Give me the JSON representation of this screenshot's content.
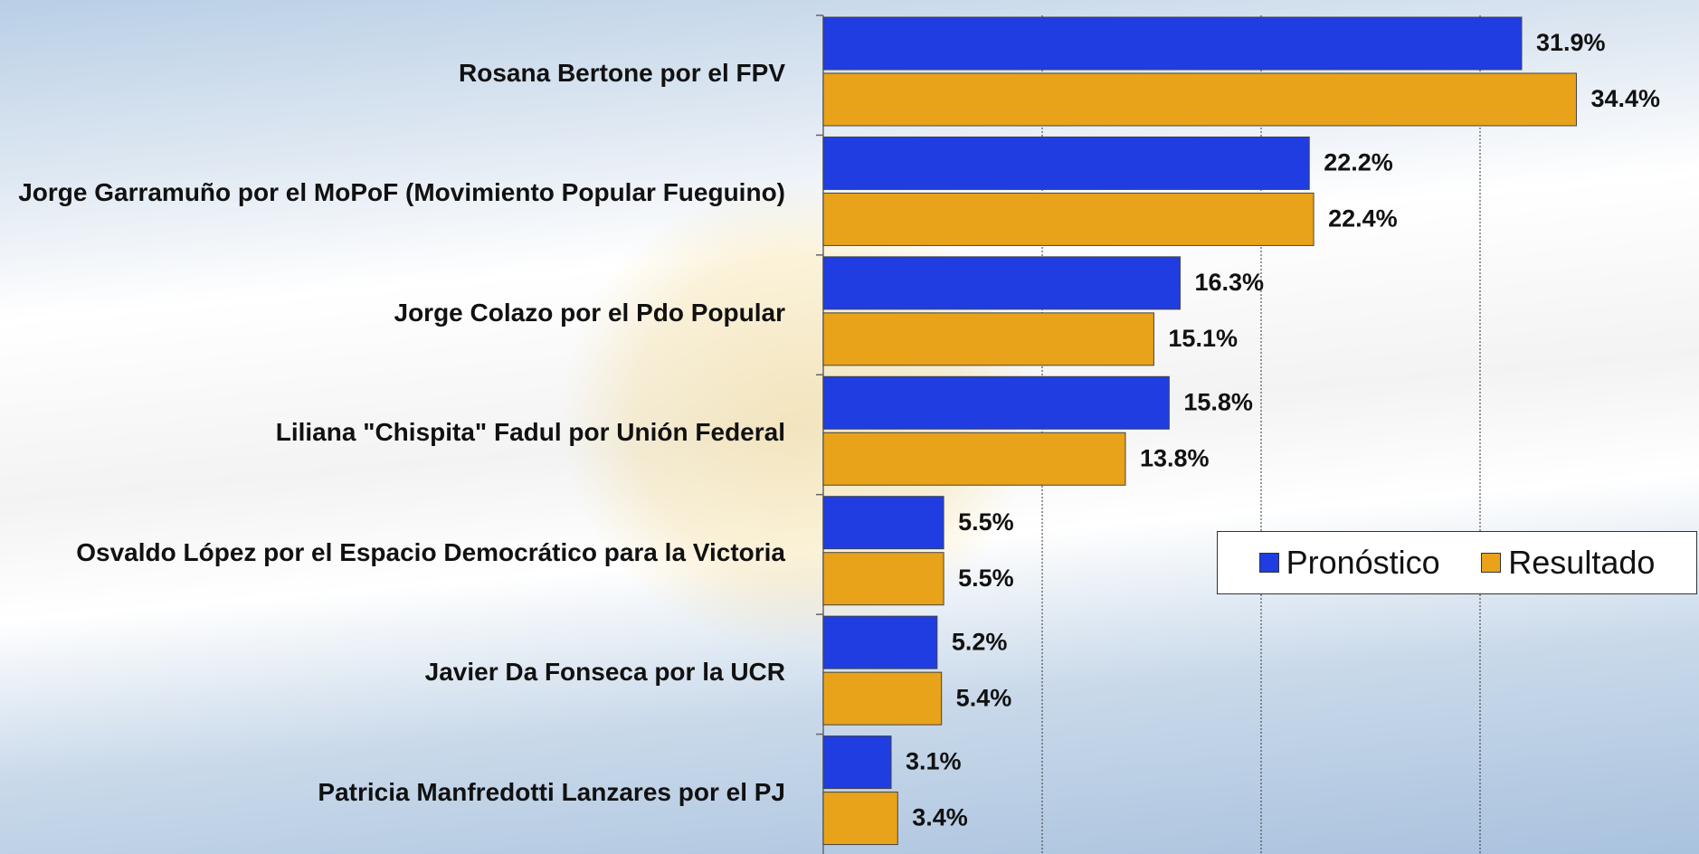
{
  "chart_data": {
    "type": "hbar",
    "categories": [
      "Rosana Bertone por el FPV",
      "Jorge Garramuño por el MoPoF (Movimiento Popular Fueguino)",
      "Jorge Colazo por el Pdo Popular",
      "Liliana \"Chispita\" Fadul por Unión Federal",
      "Osvaldo López por el Espacio Democrático para la Victoria",
      "Javier Da Fonseca por la UCR",
      "Patricia Manfredotti Lanzares por el PJ"
    ],
    "series": [
      {
        "name": "Pronóstico",
        "color": "#1f3de0",
        "values": [
          31.9,
          22.2,
          16.3,
          15.8,
          5.5,
          5.2,
          3.1
        ],
        "value_labels": [
          "31.9%",
          "22.2%",
          "16.3%",
          "15.8%",
          "5.5%",
          "5.2%",
          "3.1%"
        ]
      },
      {
        "name": "Resultado",
        "color": "#e8a31a",
        "values": [
          34.4,
          22.4,
          15.1,
          13.8,
          5.5,
          5.4,
          3.4
        ],
        "value_labels": [
          "34.4%",
          "22.4%",
          "15.1%",
          "13.8%",
          "5.5%",
          "5.4%",
          "3.4%"
        ]
      }
    ],
    "xlim": [
      0,
      40
    ],
    "xticks": [
      10,
      20,
      30
    ],
    "grid": true,
    "legend": "right"
  }
}
